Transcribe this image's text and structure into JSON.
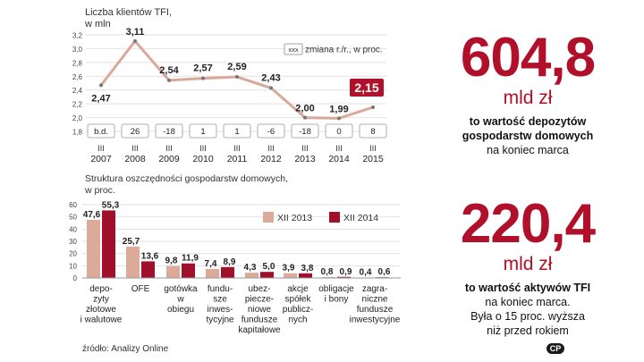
{
  "chart_data": [
    {
      "type": "line",
      "title": "Liczba klientów TFI,",
      "subtitle": "w mln",
      "legend_label": "zmiana r./r., w proc.",
      "legend_box": "xxx",
      "categories": [
        "III 2007",
        "III 2008",
        "III 2009",
        "III 2010",
        "III 2011",
        "III 2012",
        "III 2013",
        "III 2014",
        "III 2015"
      ],
      "cat_top": [
        "III",
        "III",
        "III",
        "III",
        "III",
        "III",
        "III",
        "III",
        "III"
      ],
      "cat_bottom": [
        "2007",
        "2008",
        "2009",
        "2010",
        "2011",
        "2012",
        "2013",
        "2014",
        "2015"
      ],
      "values": [
        2.47,
        3.11,
        2.54,
        2.57,
        2.59,
        2.43,
        2.0,
        1.99,
        2.15
      ],
      "value_labels": [
        "2,47",
        "3,11",
        "2,54",
        "2,57",
        "2,59",
        "2,43",
        "2,00",
        "1,99",
        "2,15"
      ],
      "changes": [
        "b.d.",
        "26",
        "-18",
        "1",
        "1",
        "-6",
        "-18",
        "0",
        "8"
      ],
      "yticks": [
        "3,2",
        "3,0",
        "2,8",
        "2,6",
        "2,4",
        "2,2",
        "2,0",
        "1,8"
      ],
      "ylim": [
        1.8,
        3.2
      ],
      "highlight_index": 8,
      "colors": {
        "line": "#d8a99a",
        "highlight": "#b0102a"
      }
    },
    {
      "type": "bar",
      "title": "Struktura oszczędności gospodarstw domowych,",
      "subtitle": "w proc.",
      "ylim": [
        0,
        60
      ],
      "yticks": [
        "60",
        "50",
        "40",
        "30",
        "20",
        "10",
        "0"
      ],
      "categories": [
        [
          "depo-",
          "zyty",
          "złotowe",
          "i walutowe"
        ],
        [
          "OFE"
        ],
        [
          "gotówka",
          "w",
          "obiegu"
        ],
        [
          "fundu-",
          "sze",
          "inwes-",
          "tycyjne"
        ],
        [
          "ubez-",
          "piecze-",
          "niowe",
          "fundusze",
          "kapitałowe"
        ],
        [
          "akcje",
          "spółek",
          "publicz-",
          "nych"
        ],
        [
          "obligacje",
          "i bony"
        ],
        [
          "zagra-",
          "niczne",
          "fundusze",
          "inwestycyjne"
        ]
      ],
      "series": [
        {
          "name": "XII 2013",
          "values": [
            47.6,
            25.7,
            9.8,
            7.4,
            4.3,
            3.9,
            0.8,
            0.4
          ],
          "labels": [
            "47,6",
            "25,7",
            "9,8",
            "7,4",
            "4,3",
            "3,9",
            "0,8",
            "0,4"
          ],
          "color": "#dcaa99"
        },
        {
          "name": "XII 2014",
          "values": [
            55.3,
            13.6,
            11.9,
            8.9,
            5.0,
            3.8,
            0.9,
            0.6
          ],
          "labels": [
            "55,3",
            "13,6",
            "11,9",
            "8,9",
            "5,0",
            "3,8",
            "0,9",
            "0,6"
          ],
          "color": "#a0102a"
        }
      ]
    }
  ],
  "right": {
    "big1": "604,8",
    "unit1": "mld zł",
    "desc1_bold": [
      "to wartość depozytów",
      "gospodarstw domowych"
    ],
    "desc1_normal": "na koniec marca",
    "big2": "220,4",
    "unit2": "mld zł",
    "desc2_bold": "to wartość aktywów TFI",
    "desc2_normal": [
      "na koniec marca.",
      "Była o 15 proc. wyższa",
      "niż przed rokiem"
    ]
  },
  "source": "źródło: Analizy Online",
  "logo": "CP"
}
